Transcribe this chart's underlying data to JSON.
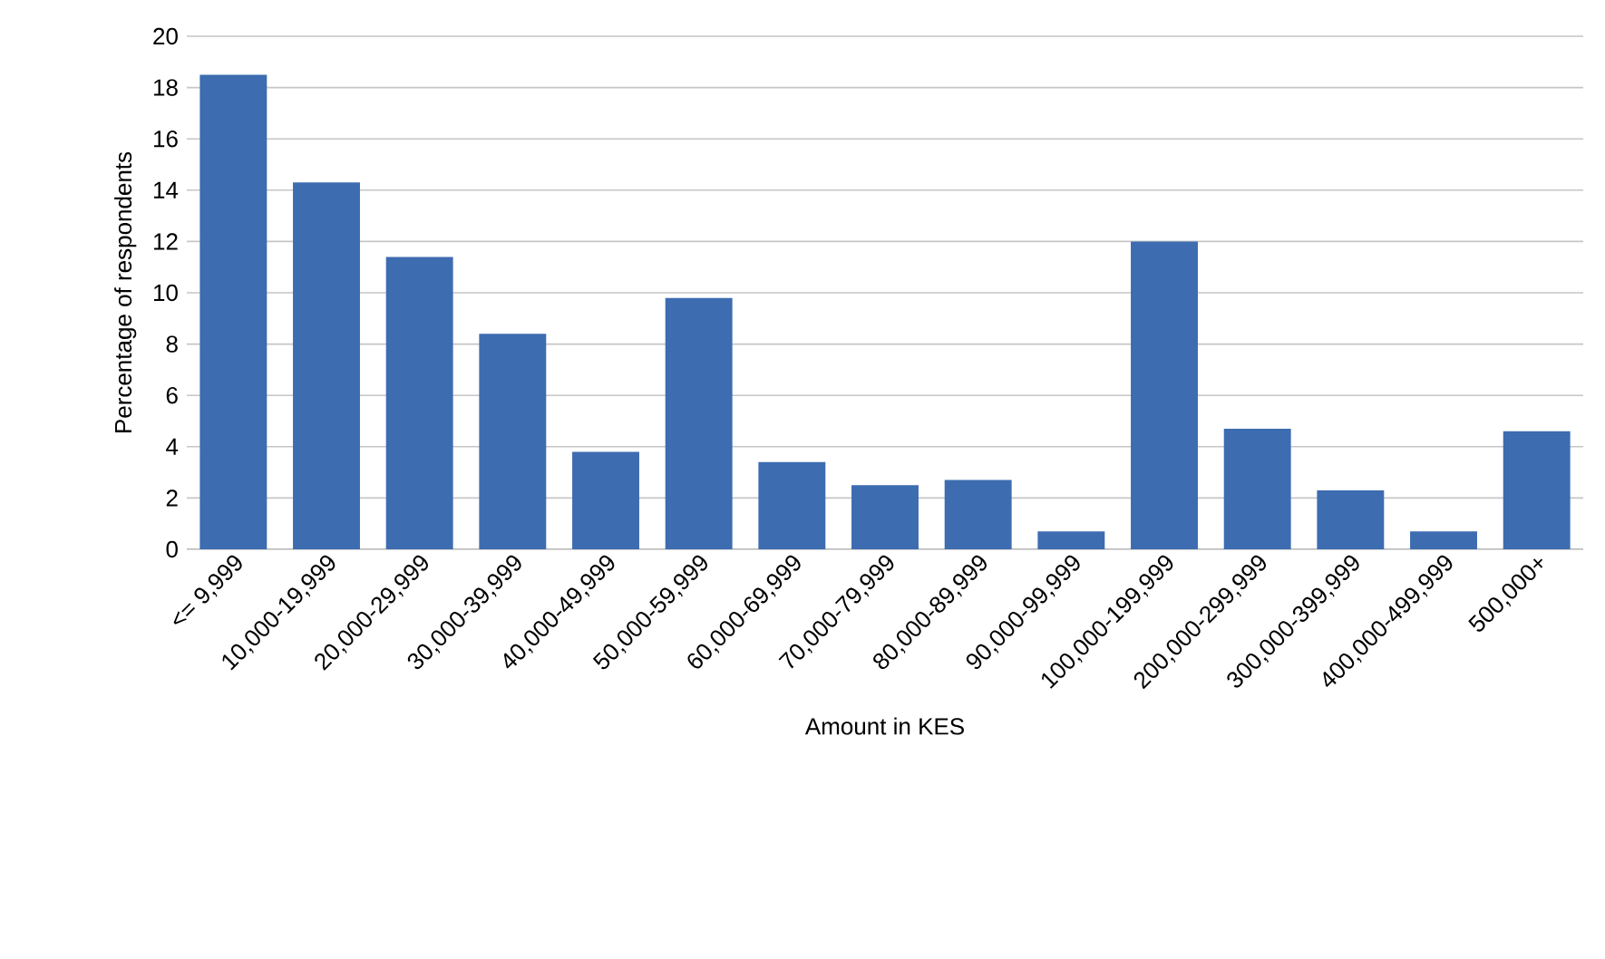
{
  "chart_data": {
    "type": "bar",
    "xlabel": "Amount in KES",
    "ylabel": "Percentage of respondents",
    "categories": [
      "<= 9,999",
      "10,000-19,999",
      "20,000-29,999",
      "30,000-39,999",
      "40,000-49,999",
      "50,000-59,999",
      "60,000-69,999",
      "70,000-79,999",
      "80,000-89,999",
      "90,000-99,999",
      "100,000-199,999",
      "200,000-299,999",
      "300,000-399,999",
      "400,000-499,999",
      "500,000+"
    ],
    "values": [
      18.5,
      14.3,
      11.4,
      8.4,
      3.8,
      9.8,
      3.4,
      2.5,
      2.7,
      0.7,
      12.0,
      4.7,
      2.3,
      0.7,
      4.6
    ],
    "color": "#3d6cb0",
    "ylim": [
      0,
      20
    ],
    "yticks": [
      0,
      2,
      4,
      6,
      8,
      10,
      12,
      14,
      16,
      18,
      20
    ],
    "grid": "y"
  }
}
